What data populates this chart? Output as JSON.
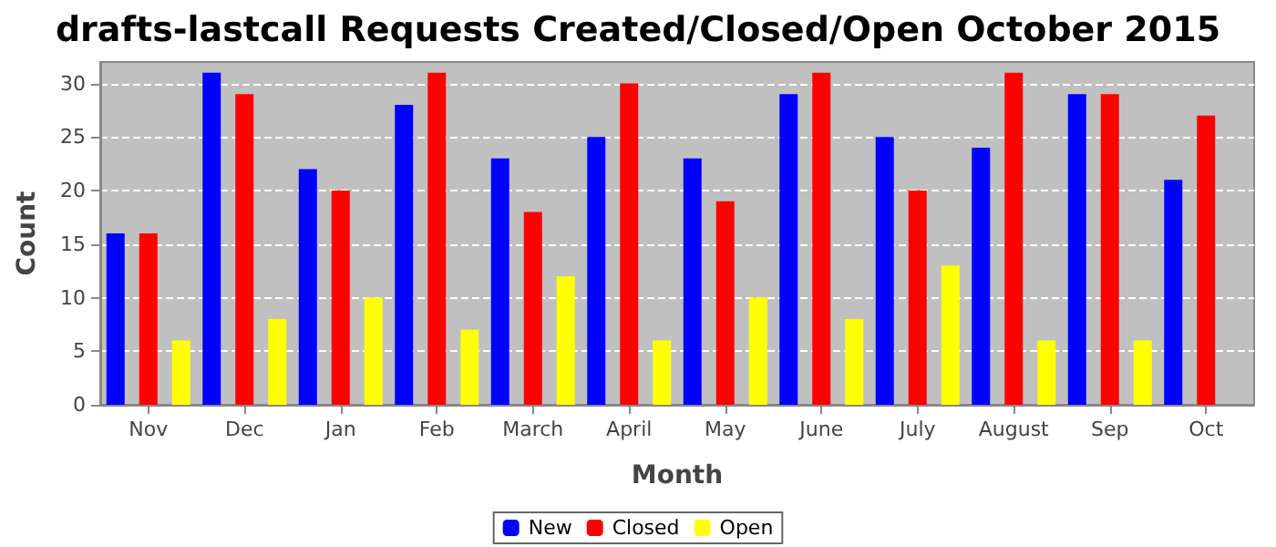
{
  "chart_data": {
    "type": "bar",
    "title": "drafts-lastcall Requests Created/Closed/Open October 2015",
    "xlabel": "Month",
    "ylabel": "Count",
    "categories": [
      "Nov",
      "Dec",
      "Jan",
      "Feb",
      "March",
      "April",
      "May",
      "June",
      "July",
      "August",
      "Sep",
      "Oct"
    ],
    "series": [
      {
        "name": "New",
        "color": "#0000ff",
        "values": [
          16,
          31,
          22,
          28,
          23,
          25,
          23,
          29,
          25,
          24,
          29,
          21
        ]
      },
      {
        "name": "Closed",
        "color": "#ff0000",
        "values": [
          16,
          29,
          20,
          31,
          18,
          30,
          19,
          31,
          20,
          31,
          29,
          27
        ]
      },
      {
        "name": "Open",
        "color": "#ffff00",
        "values": [
          6,
          8,
          10,
          7,
          12,
          6,
          10,
          8,
          13,
          6,
          6,
          null
        ]
      }
    ],
    "ylim": [
      0,
      32
    ],
    "yticks": [
      0,
      5,
      10,
      15,
      20,
      25,
      30
    ],
    "grid": "y",
    "legend": "bottom"
  }
}
